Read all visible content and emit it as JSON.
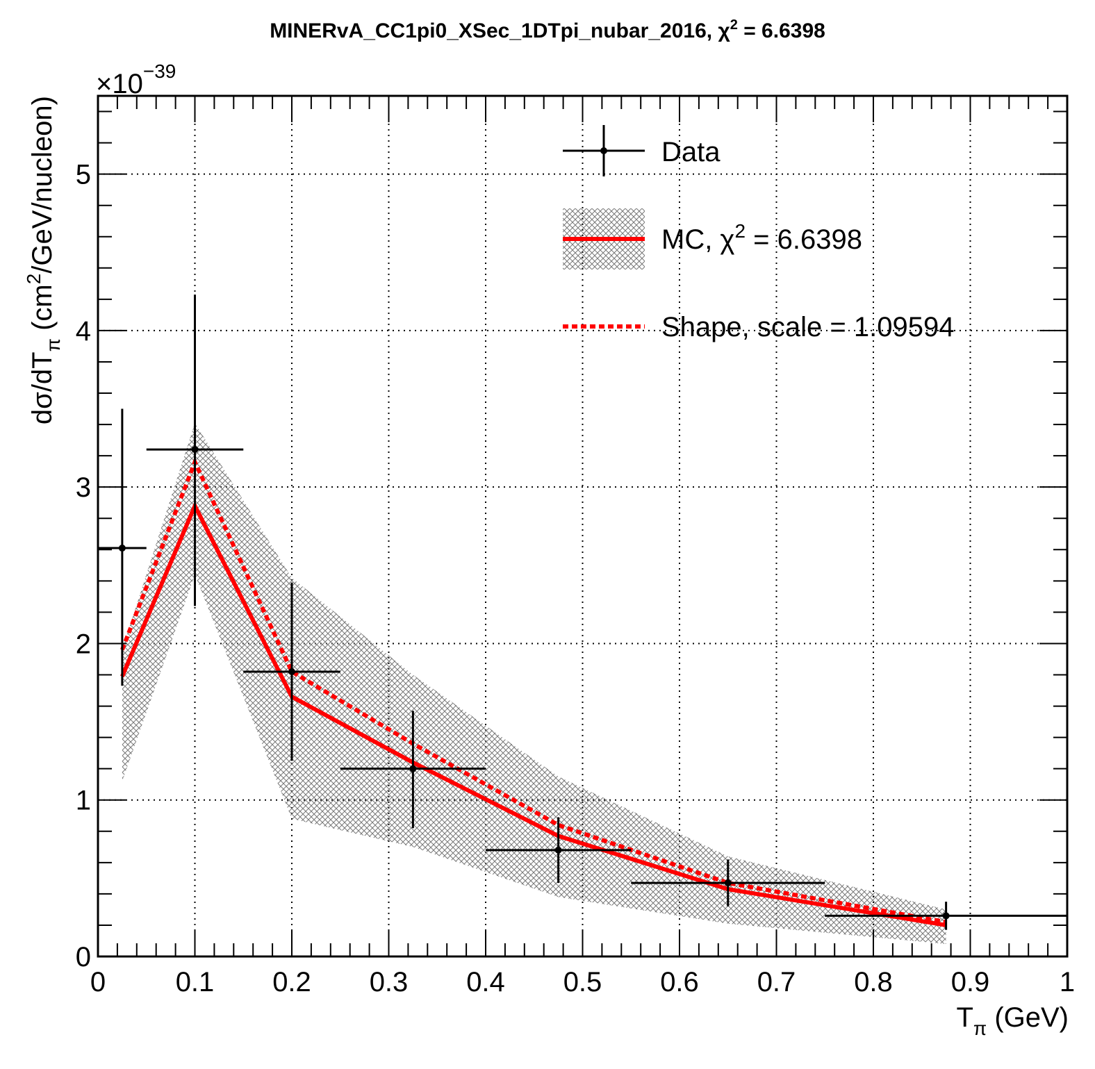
{
  "chart_data": {
    "type": "line",
    "title": "MINERvA_CC1pi0_XSec_1DTpi_nubar_2016, χ² = 6.6398",
    "title_parts": {
      "main": "MINERvA_CC1pi0_XSec_1DTpi_nubar_2016, χ",
      "sup": "2",
      "tail": " = 6.6398"
    },
    "xlabel_parts": {
      "main": "T",
      "sub": "π",
      "tail": " (GeV)"
    },
    "ylabel_parts": {
      "main": "dσ/dT",
      "sub": "π",
      "mid": " (cm",
      "sup": "2",
      "tail": "/GeV/nucleon)"
    },
    "y_multiplier_parts": {
      "main": "×10",
      "sup": "−39"
    },
    "xlim": [
      0,
      1
    ],
    "ylim": [
      0,
      5.5
    ],
    "xticks": [
      "0",
      "0.1",
      "0.2",
      "0.3",
      "0.4",
      "0.5",
      "0.6",
      "0.7",
      "0.8",
      "0.9",
      "1"
    ],
    "yticks": [
      "0",
      "1",
      "2",
      "3",
      "4",
      "5"
    ],
    "grid": true,
    "legend_position": "top-right",
    "series": [
      {
        "name": "Data",
        "kind": "errorbar",
        "color": "#000000",
        "points": [
          {
            "x": 0.025,
            "xlo": 0.0,
            "xhi": 0.05,
            "y": 2.61,
            "ylo": 1.73,
            "yhi": 3.5
          },
          {
            "x": 0.1,
            "xlo": 0.05,
            "xhi": 0.15,
            "y": 3.24,
            "ylo": 2.24,
            "yhi": 4.23
          },
          {
            "x": 0.2,
            "xlo": 0.15,
            "xhi": 0.25,
            "y": 1.82,
            "ylo": 1.25,
            "yhi": 2.39
          },
          {
            "x": 0.325,
            "xlo": 0.25,
            "xhi": 0.4,
            "y": 1.2,
            "ylo": 0.82,
            "yhi": 1.57
          },
          {
            "x": 0.475,
            "xlo": 0.4,
            "xhi": 0.55,
            "y": 0.68,
            "ylo": 0.47,
            "yhi": 0.89
          },
          {
            "x": 0.65,
            "xlo": 0.55,
            "xhi": 0.75,
            "y": 0.47,
            "ylo": 0.32,
            "yhi": 0.62
          },
          {
            "x": 0.875,
            "xlo": 0.75,
            "xhi": 1.0,
            "y": 0.26,
            "ylo": 0.17,
            "yhi": 0.35
          }
        ]
      },
      {
        "name": "MC, χ² = 6.6398",
        "label_parts": {
          "main": "MC, χ",
          "sup": "2",
          "tail": " = 6.6398"
        },
        "kind": "line-band",
        "color": "#ff0000",
        "x": [
          0.025,
          0.1,
          0.2,
          0.325,
          0.475,
          0.65,
          0.875
        ],
        "values": [
          1.79,
          2.88,
          1.66,
          1.24,
          0.77,
          0.43,
          0.2
        ],
        "band_low": [
          1.12,
          2.44,
          0.88,
          0.7,
          0.38,
          0.21,
          0.08
        ],
        "band_high": [
          1.96,
          3.41,
          2.42,
          1.8,
          1.15,
          0.64,
          0.3
        ]
      },
      {
        "name": "Shape, scale = 1.09594",
        "kind": "dashed-line",
        "color": "#ff0000",
        "x": [
          0.025,
          0.1,
          0.2,
          0.325,
          0.475,
          0.65,
          0.875
        ],
        "values": [
          1.96,
          3.16,
          1.82,
          1.36,
          0.84,
          0.47,
          0.22
        ]
      }
    ]
  }
}
